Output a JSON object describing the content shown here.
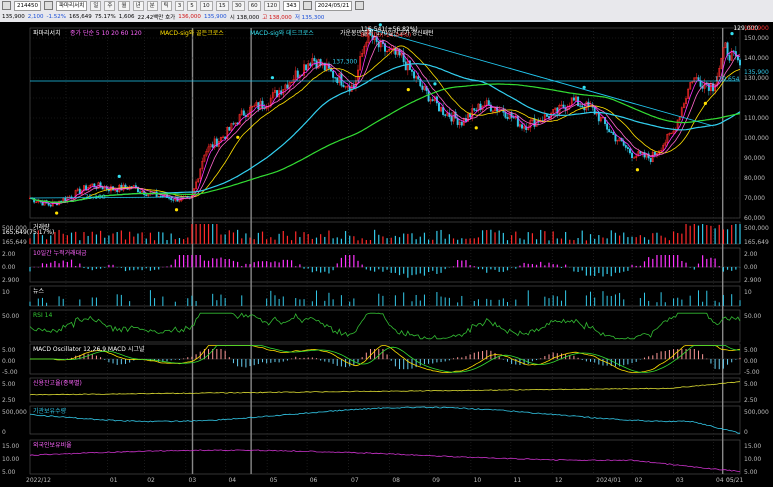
{
  "toolbar": {
    "code": "214450",
    "company": "파마리서치",
    "period_buttons": [
      "일",
      "주",
      "월",
      "년",
      "분",
      "틱",
      "3",
      "5",
      "10",
      "15",
      "30",
      "60",
      "120"
    ],
    "active_period": "일",
    "count": "343",
    "date": "2024/05/21",
    "q1": "135,900",
    "q2": "2,100",
    "q3": "-1.52%",
    "q4": "165,649",
    "q5": "75.17%",
    "q6": "1,606",
    "q7": "22.42백만 호가",
    "q8": "136,000",
    "q9": "135,900",
    "q10": "시 138,000",
    "q11": "고 138,000",
    "q12": "저 135,300"
  },
  "colors": {
    "up": "#ff2a2a",
    "down": "#33c8e8",
    "ma5": "#ff33ff",
    "ma20": "#ffe000",
    "ma60": "#33d0f0",
    "ma120": "#33dd33",
    "trend": "#22c8f0",
    "macd": "#ffe000",
    "signal": "#33dd33",
    "rsi": "#33bb33",
    "credit": "#dddd33",
    "foreign": "#cc33cc",
    "holdings": "#33c8e8"
  },
  "chart_data": [
    {
      "type": "candlestick",
      "panel": "price",
      "title": "파마리서치",
      "legend": [
        "종가 단순 5 10 20 60 120",
        "MACD-sig와 골든크로스",
        "MACD-sig와 데드크로스",
        "가운봉만들기_170일신고가 갱신패턴"
      ],
      "x": [
        "2022/12",
        "01",
        "02",
        "03",
        "04",
        "05",
        "06",
        "07",
        "08",
        "09",
        "10",
        "11",
        "12",
        "2024/01",
        "02",
        "03",
        "04",
        "05",
        "05/21"
      ],
      "ylim": [
        60000,
        155000
      ],
      "y_ticks": [
        "150,000",
        "140,000",
        "130,000",
        "120,000",
        "110,000",
        "100,000",
        "90,000",
        "80,000",
        "70,000",
        "60,000"
      ],
      "close_path": [
        [
          "2022-12-05",
          70000
        ],
        [
          "2022-12-20",
          66500
        ],
        [
          "2023-01-05",
          71000
        ],
        [
          "2023-01-20",
          76500
        ],
        [
          "2023-02-05",
          74500
        ],
        [
          "2023-02-20",
          75500
        ],
        [
          "2023-03-05",
          72000
        ],
        [
          "2023-03-20",
          70000
        ],
        [
          "2023-04-05",
          69000
        ],
        [
          "2023-04-15",
          93000
        ],
        [
          "2023-05-01",
          102000
        ],
        [
          "2023-05-15",
          113000
        ],
        [
          "2023-06-01",
          118000
        ],
        [
          "2023-06-20",
          130000
        ],
        [
          "2023-07-05",
          140000
        ],
        [
          "2023-07-20",
          132000
        ],
        [
          "2023-08-05",
          125000
        ],
        [
          "2023-08-15",
          152000
        ],
        [
          "2023-08-25",
          145000
        ],
        [
          "2023-09-10",
          140000
        ],
        [
          "2023-09-25",
          125000
        ],
        [
          "2023-10-10",
          114000
        ],
        [
          "2023-10-25",
          108000
        ],
        [
          "2023-11-10",
          117000
        ],
        [
          "2023-11-25",
          114000
        ],
        [
          "2023-12-10",
          106000
        ],
        [
          "2023-12-25",
          110000
        ],
        [
          "2024-01-05",
          113000
        ],
        [
          "2024-01-15",
          119000
        ],
        [
          "2024-02-01",
          114000
        ],
        [
          "2024-02-15",
          102000
        ],
        [
          "2024-03-01",
          92000
        ],
        [
          "2024-03-15",
          90000
        ],
        [
          "2024-04-01",
          103000
        ],
        [
          "2024-04-15",
          130000
        ],
        [
          "2024-05-01",
          126000
        ],
        [
          "2024-05-10",
          145000
        ],
        [
          "2024-05-21",
          136000
        ]
      ],
      "price_labels": [
        "137,300",
        "116,541(+56.82%)",
        "80,700(-14.04%)",
        "129,654",
        "75,100",
        "129,000"
      ],
      "right_labels": [
        "152,900",
        "135,900"
      ]
    },
    {
      "type": "bar",
      "panel": "volume",
      "title": "거래량",
      "values_label": "165,649(75.17%)",
      "ticks": [
        "500,000",
        "165,649"
      ]
    },
    {
      "type": "bar",
      "panel": "accumulated",
      "title": "10일간 누적거래대금",
      "ticks": [
        "2.00",
        "0.00",
        "2.900"
      ]
    },
    {
      "type": "bar",
      "panel": "news",
      "title": "뉴스",
      "ticks": [
        "10"
      ]
    },
    {
      "type": "line",
      "panel": "rsi",
      "title": "RSI 14",
      "ticks": [
        "50.00"
      ]
    },
    {
      "type": "line",
      "panel": "macd",
      "title": "MACD Oscillator 12,26,9  MACD  시그널",
      "ticks": [
        "5.00",
        "0.00",
        "-5.00"
      ]
    },
    {
      "type": "line",
      "panel": "credit",
      "title": "신용잔고율(종목별)",
      "ticks": [
        "5.00",
        "2.50"
      ]
    },
    {
      "type": "line",
      "panel": "holdings",
      "title": "기관보유수량",
      "ticks": [
        "500,000",
        "0"
      ]
    },
    {
      "type": "line",
      "panel": "foreign",
      "title": "외국인보유비율",
      "ticks": [
        "15.00",
        "10.00",
        "5.00"
      ]
    }
  ]
}
